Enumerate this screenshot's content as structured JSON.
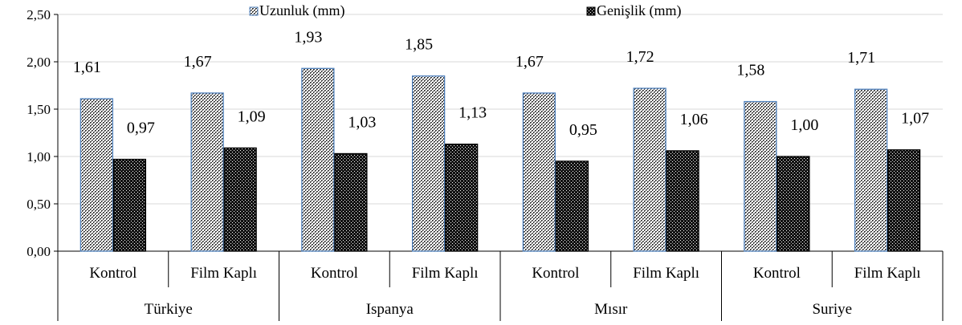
{
  "chart_data": {
    "type": "bar",
    "title": "",
    "xlabel": "",
    "ylabel": "",
    "ylim": [
      0,
      2.5
    ],
    "yticks": [
      "0,00",
      "0,50",
      "1,00",
      "1,50",
      "2,00",
      "2,50"
    ],
    "legend_position": "top",
    "groups": [
      "Türkiye",
      "Ispanya",
      "Mısır",
      "Suriye"
    ],
    "categories": [
      "Kontrol",
      "Film Kaplı",
      "Kontrol",
      "Film Kaplı",
      "Kontrol",
      "Film Kaplı",
      "Kontrol",
      "Film Kaplı"
    ],
    "series": [
      {
        "name": "Uzunluk (mm)",
        "values": [
          1.61,
          1.67,
          1.93,
          1.85,
          1.67,
          1.72,
          1.58,
          1.71
        ],
        "labels": [
          "1,61",
          "1,67",
          "1,93",
          "1,85",
          "1,67",
          "1,72",
          "1,58",
          "1,71"
        ],
        "pattern": "light-checker",
        "stroke_color": "#4f81bd"
      },
      {
        "name": "Genişlik (mm)",
        "values": [
          0.97,
          1.09,
          1.03,
          1.13,
          0.95,
          1.06,
          1.0,
          1.07
        ],
        "labels": [
          "0,97",
          "1,09",
          "1,03",
          "1,13",
          "0,95",
          "1,06",
          "1,00",
          "1,07"
        ],
        "pattern": "dark-checker",
        "stroke_color": "#000000"
      }
    ],
    "grid": true
  }
}
